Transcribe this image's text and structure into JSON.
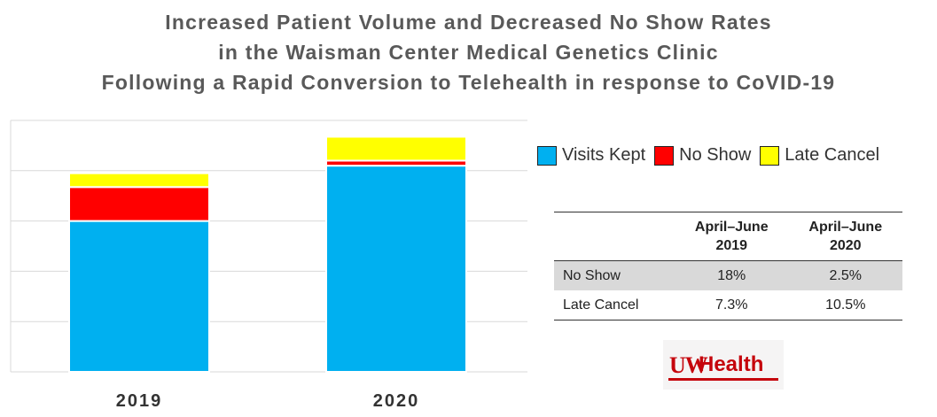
{
  "title_lines": [
    "Increased Patient Volume and Decreased No Show Rates",
    "in the Waisman Center Medical Genetics Clinic",
    "Following a Rapid Conversion to Telehealth in response to CoVID-19"
  ],
  "colors": {
    "visits_kept": "#00b0f0",
    "no_show": "#ff0000",
    "late_cancel": "#ffff00",
    "gridline": "#d9d9d9",
    "title": "#595959",
    "brand_red": "#c5050c"
  },
  "chart_data": {
    "type": "bar",
    "stacked": true,
    "title": "",
    "categories": [
      "2019",
      "2020"
    ],
    "series": [
      {
        "name": "Visits Kept",
        "values": [
          60,
          82
        ],
        "color": "#00b0f0"
      },
      {
        "name": "No Show",
        "values": [
          13.5,
          2
        ],
        "color": "#ff0000"
      },
      {
        "name": "Late Cancel",
        "values": [
          5.5,
          9.5
        ],
        "color": "#ffff00"
      }
    ],
    "ylim": [
      0,
      100
    ],
    "y_gridlines": [
      0,
      20,
      40,
      60,
      80,
      100
    ],
    "y_tick_labels_visible": false,
    "grid": true,
    "legend_position": "right"
  },
  "rates_table": {
    "columns": [
      {
        "line1": "April–June",
        "line2": "2019"
      },
      {
        "line1": "April–June",
        "line2": "2020"
      }
    ],
    "rows": [
      {
        "label": "No Show",
        "values": [
          "18%",
          "2.5%"
        ]
      },
      {
        "label": "Late Cancel",
        "values": [
          "7.3%",
          "10.5%"
        ]
      }
    ]
  },
  "logo": {
    "uw": "UW",
    "health": "Health"
  }
}
